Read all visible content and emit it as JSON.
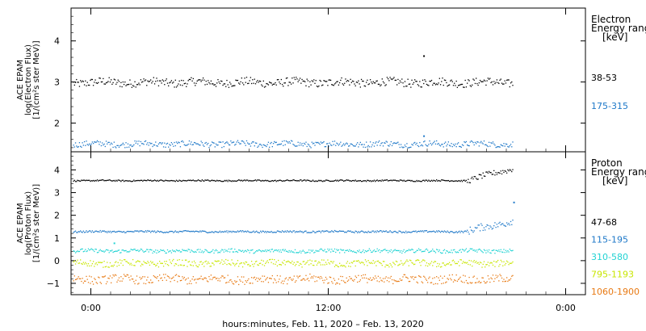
{
  "chart_data": [
    {
      "type": "scatter",
      "panel": "electron",
      "ylabel_lines": [
        "ACE EPAM",
        "log(Electron Flux)",
        "[1/(cm²s ster MeV)]"
      ],
      "ylim": [
        1.3,
        4.8
      ],
      "yticks": [
        2,
        3,
        4
      ],
      "legend_title_lines": [
        "Electron",
        "Energy range",
        "[keV]"
      ],
      "series": [
        {
          "name": "38-53",
          "color": "#000000",
          "level": 3.0,
          "spread": 0.1,
          "x_end": 42.7,
          "spikes": [
            {
              "x": 33.6,
              "y": 3.65
            }
          ]
        },
        {
          "name": "175-315",
          "color": "#1e78c8",
          "level": 1.5,
          "spread": 0.07,
          "x_end": 42.7,
          "spikes": [
            {
              "x": 33.6,
              "y": 1.7
            }
          ]
        }
      ]
    },
    {
      "type": "scatter",
      "panel": "proton",
      "ylabel_lines": [
        "ACE EPAM",
        "log(Proton Flux)",
        "[1/(cm²s ster MeV)]"
      ],
      "ylim": [
        -1.5,
        4.8
      ],
      "yticks": [
        -1,
        0,
        1,
        2,
        3,
        4
      ],
      "legend_title_lines": [
        "Proton",
        "Energy range",
        "[keV]"
      ],
      "series": [
        {
          "name": "47-68",
          "color": "#000000",
          "level": 3.55,
          "spread": 0.03,
          "x_end": 42.7,
          "rise": {
            "x_start": 38.0,
            "to": 4.1
          },
          "spikes": []
        },
        {
          "name": "115-195",
          "color": "#1e78c8",
          "level": 1.3,
          "spread": 0.04,
          "x_end": 42.7,
          "rise": {
            "x_start": 38.0,
            "to": 1.8
          },
          "spikes": [
            {
              "x": 42.7,
              "y": 2.6
            }
          ]
        },
        {
          "name": "310-580",
          "color": "#22d3d3",
          "level": 0.45,
          "spread": 0.08,
          "x_end": 42.7,
          "spikes": [
            {
              "x": 2.3,
              "y": 0.8
            }
          ]
        },
        {
          "name": "795-1193",
          "color": "#c8e600",
          "level": -0.1,
          "spread": 0.14,
          "x_end": 42.7,
          "spikes": []
        },
        {
          "name": "1060-1900",
          "color": "#e87a14",
          "level": -0.8,
          "spread": 0.18,
          "x_end": 42.7,
          "spikes": []
        }
      ]
    }
  ],
  "xaxis": {
    "xlim": [
      -2,
      50
    ],
    "ticks": [
      {
        "x": 0,
        "label": "0:00"
      },
      {
        "x": 24,
        "label": "12:00"
      },
      {
        "x": 48,
        "label": "0:00"
      }
    ],
    "xlabel": "hours:minutes, Feb. 11, 2020 – Feb. 13, 2020"
  }
}
